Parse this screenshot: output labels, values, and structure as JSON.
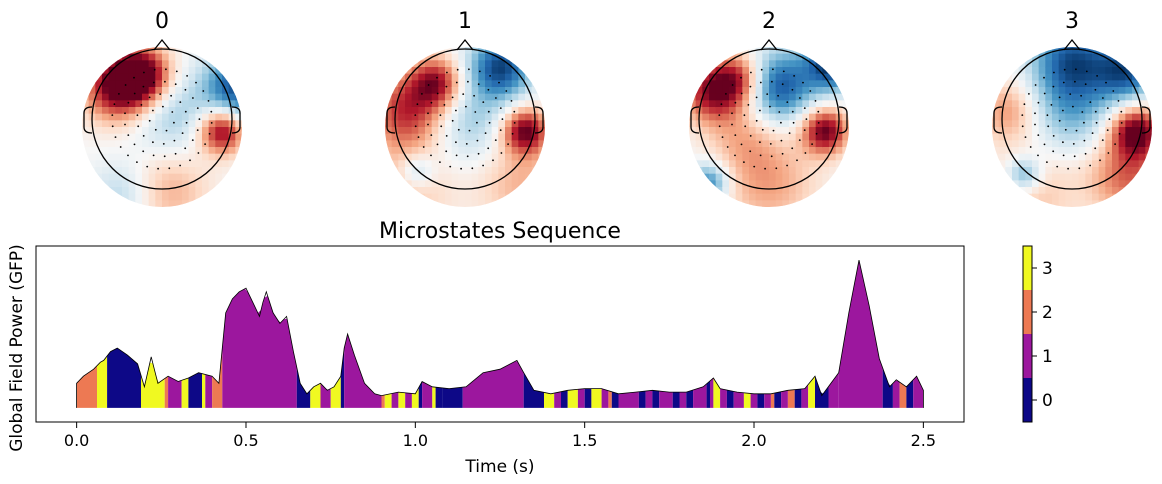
{
  "topomaps": {
    "labels": [
      "0",
      "1",
      "2",
      "3"
    ],
    "colormap": "RdBu_r"
  },
  "chart_data": {
    "type": "area",
    "title": "Microstates Sequence",
    "xlabel": "Time (s)",
    "ylabel": "Global Field Power (GFP)",
    "xlim": [
      -0.12,
      2.62
    ],
    "ylim": [
      0,
      1.0
    ],
    "x_ticks": [
      0.0,
      0.5,
      1.0,
      1.5,
      2.0,
      2.5
    ],
    "x_tick_labels": [
      "0.0",
      "0.5",
      "1.0",
      "1.5",
      "2.0",
      "2.5"
    ],
    "state_colors": [
      "#0d0887",
      "#9c179e",
      "#ed7953",
      "#f0f921"
    ],
    "colorbar": {
      "ticks": [
        0,
        1,
        2,
        3
      ],
      "tick_labels": [
        "0",
        "1",
        "2",
        "3"
      ],
      "range": [
        -0.5,
        3.5
      ]
    },
    "gfp": {
      "x": [
        0.0,
        0.02,
        0.05,
        0.07,
        0.08,
        0.1,
        0.12,
        0.15,
        0.18,
        0.2,
        0.22,
        0.24,
        0.27,
        0.3,
        0.33,
        0.36,
        0.4,
        0.42,
        0.43,
        0.44,
        0.46,
        0.48,
        0.5,
        0.52,
        0.54,
        0.55,
        0.56,
        0.58,
        0.6,
        0.62,
        0.64,
        0.66,
        0.68,
        0.7,
        0.72,
        0.74,
        0.76,
        0.78,
        0.79,
        0.8,
        0.82,
        0.85,
        0.88,
        0.9,
        0.95,
        1.0,
        1.02,
        1.05,
        1.1,
        1.15,
        1.2,
        1.25,
        1.3,
        1.32,
        1.35,
        1.4,
        1.45,
        1.5,
        1.55,
        1.6,
        1.65,
        1.7,
        1.75,
        1.8,
        1.85,
        1.88,
        1.9,
        1.95,
        2.0,
        2.05,
        2.1,
        2.15,
        2.18,
        2.2,
        2.25,
        2.28,
        2.31,
        2.34,
        2.37,
        2.4,
        2.42,
        2.45,
        2.48,
        2.5
      ],
      "y": [
        0.22,
        0.26,
        0.3,
        0.34,
        0.35,
        0.4,
        0.42,
        0.38,
        0.33,
        0.2,
        0.37,
        0.22,
        0.26,
        0.23,
        0.25,
        0.28,
        0.26,
        0.22,
        0.42,
        0.62,
        0.7,
        0.74,
        0.76,
        0.68,
        0.6,
        0.68,
        0.74,
        0.62,
        0.56,
        0.6,
        0.4,
        0.22,
        0.16,
        0.2,
        0.22,
        0.18,
        0.2,
        0.26,
        0.42,
        0.5,
        0.38,
        0.22,
        0.16,
        0.15,
        0.17,
        0.16,
        0.23,
        0.2,
        0.19,
        0.2,
        0.28,
        0.3,
        0.35,
        0.28,
        0.18,
        0.16,
        0.18,
        0.19,
        0.19,
        0.16,
        0.17,
        0.18,
        0.17,
        0.17,
        0.2,
        0.25,
        0.19,
        0.17,
        0.16,
        0.16,
        0.18,
        0.19,
        0.26,
        0.15,
        0.28,
        0.62,
        0.92,
        0.66,
        0.36,
        0.2,
        0.24,
        0.2,
        0.26,
        0.18
      ]
    },
    "segments": [
      [
        0.0,
        0.06,
        2
      ],
      [
        0.06,
        0.09,
        3
      ],
      [
        0.09,
        0.19,
        0
      ],
      [
        0.19,
        0.26,
        3
      ],
      [
        0.26,
        0.27,
        2
      ],
      [
        0.27,
        0.31,
        1
      ],
      [
        0.31,
        0.33,
        3
      ],
      [
        0.33,
        0.37,
        0
      ],
      [
        0.37,
        0.38,
        3
      ],
      [
        0.38,
        0.4,
        1
      ],
      [
        0.4,
        0.43,
        2
      ],
      [
        0.43,
        0.65,
        1
      ],
      [
        0.65,
        0.69,
        0
      ],
      [
        0.69,
        0.72,
        3
      ],
      [
        0.72,
        0.75,
        1
      ],
      [
        0.75,
        0.78,
        3
      ],
      [
        0.78,
        0.79,
        0
      ],
      [
        0.79,
        0.9,
        1
      ],
      [
        0.9,
        0.91,
        2
      ],
      [
        0.91,
        0.93,
        3
      ],
      [
        0.93,
        0.95,
        1
      ],
      [
        0.95,
        0.97,
        3
      ],
      [
        0.97,
        0.99,
        1
      ],
      [
        0.99,
        1.01,
        3
      ],
      [
        1.01,
        1.02,
        0
      ],
      [
        1.02,
        1.05,
        1
      ],
      [
        1.05,
        1.06,
        3
      ],
      [
        1.06,
        1.08,
        0
      ],
      [
        1.08,
        1.14,
        0
      ],
      [
        1.14,
        1.32,
        1
      ],
      [
        1.32,
        1.38,
        0
      ],
      [
        1.38,
        1.41,
        3
      ],
      [
        1.41,
        1.43,
        1
      ],
      [
        1.43,
        1.45,
        0
      ],
      [
        1.45,
        1.48,
        3
      ],
      [
        1.48,
        1.5,
        1
      ],
      [
        1.5,
        1.52,
        0
      ],
      [
        1.52,
        1.55,
        3
      ],
      [
        1.55,
        1.57,
        1
      ],
      [
        1.57,
        1.58,
        2
      ],
      [
        1.58,
        1.6,
        0
      ],
      [
        1.6,
        1.66,
        1
      ],
      [
        1.66,
        1.68,
        0
      ],
      [
        1.68,
        1.7,
        1
      ],
      [
        1.7,
        1.72,
        0
      ],
      [
        1.72,
        1.76,
        1
      ],
      [
        1.76,
        1.78,
        0
      ],
      [
        1.78,
        1.8,
        1
      ],
      [
        1.8,
        1.82,
        0
      ],
      [
        1.82,
        1.86,
        1
      ],
      [
        1.86,
        1.87,
        0
      ],
      [
        1.87,
        1.88,
        1
      ],
      [
        1.88,
        1.9,
        3
      ],
      [
        1.9,
        1.92,
        1
      ],
      [
        1.92,
        1.94,
        0
      ],
      [
        1.94,
        1.97,
        1
      ],
      [
        1.97,
        1.99,
        3
      ],
      [
        1.99,
        2.01,
        1
      ],
      [
        2.01,
        2.03,
        0
      ],
      [
        2.03,
        2.05,
        1
      ],
      [
        2.05,
        2.06,
        2
      ],
      [
        2.06,
        2.08,
        0
      ],
      [
        2.08,
        2.1,
        1
      ],
      [
        2.1,
        2.12,
        2
      ],
      [
        2.12,
        2.14,
        0
      ],
      [
        2.14,
        2.16,
        1
      ],
      [
        2.16,
        2.18,
        3
      ],
      [
        2.18,
        2.22,
        0
      ],
      [
        2.22,
        2.25,
        1
      ],
      [
        2.25,
        2.38,
        1
      ],
      [
        2.38,
        2.41,
        0
      ],
      [
        2.41,
        2.43,
        1
      ],
      [
        2.43,
        2.45,
        2
      ],
      [
        2.45,
        2.47,
        0
      ],
      [
        2.47,
        2.5,
        1
      ]
    ]
  }
}
